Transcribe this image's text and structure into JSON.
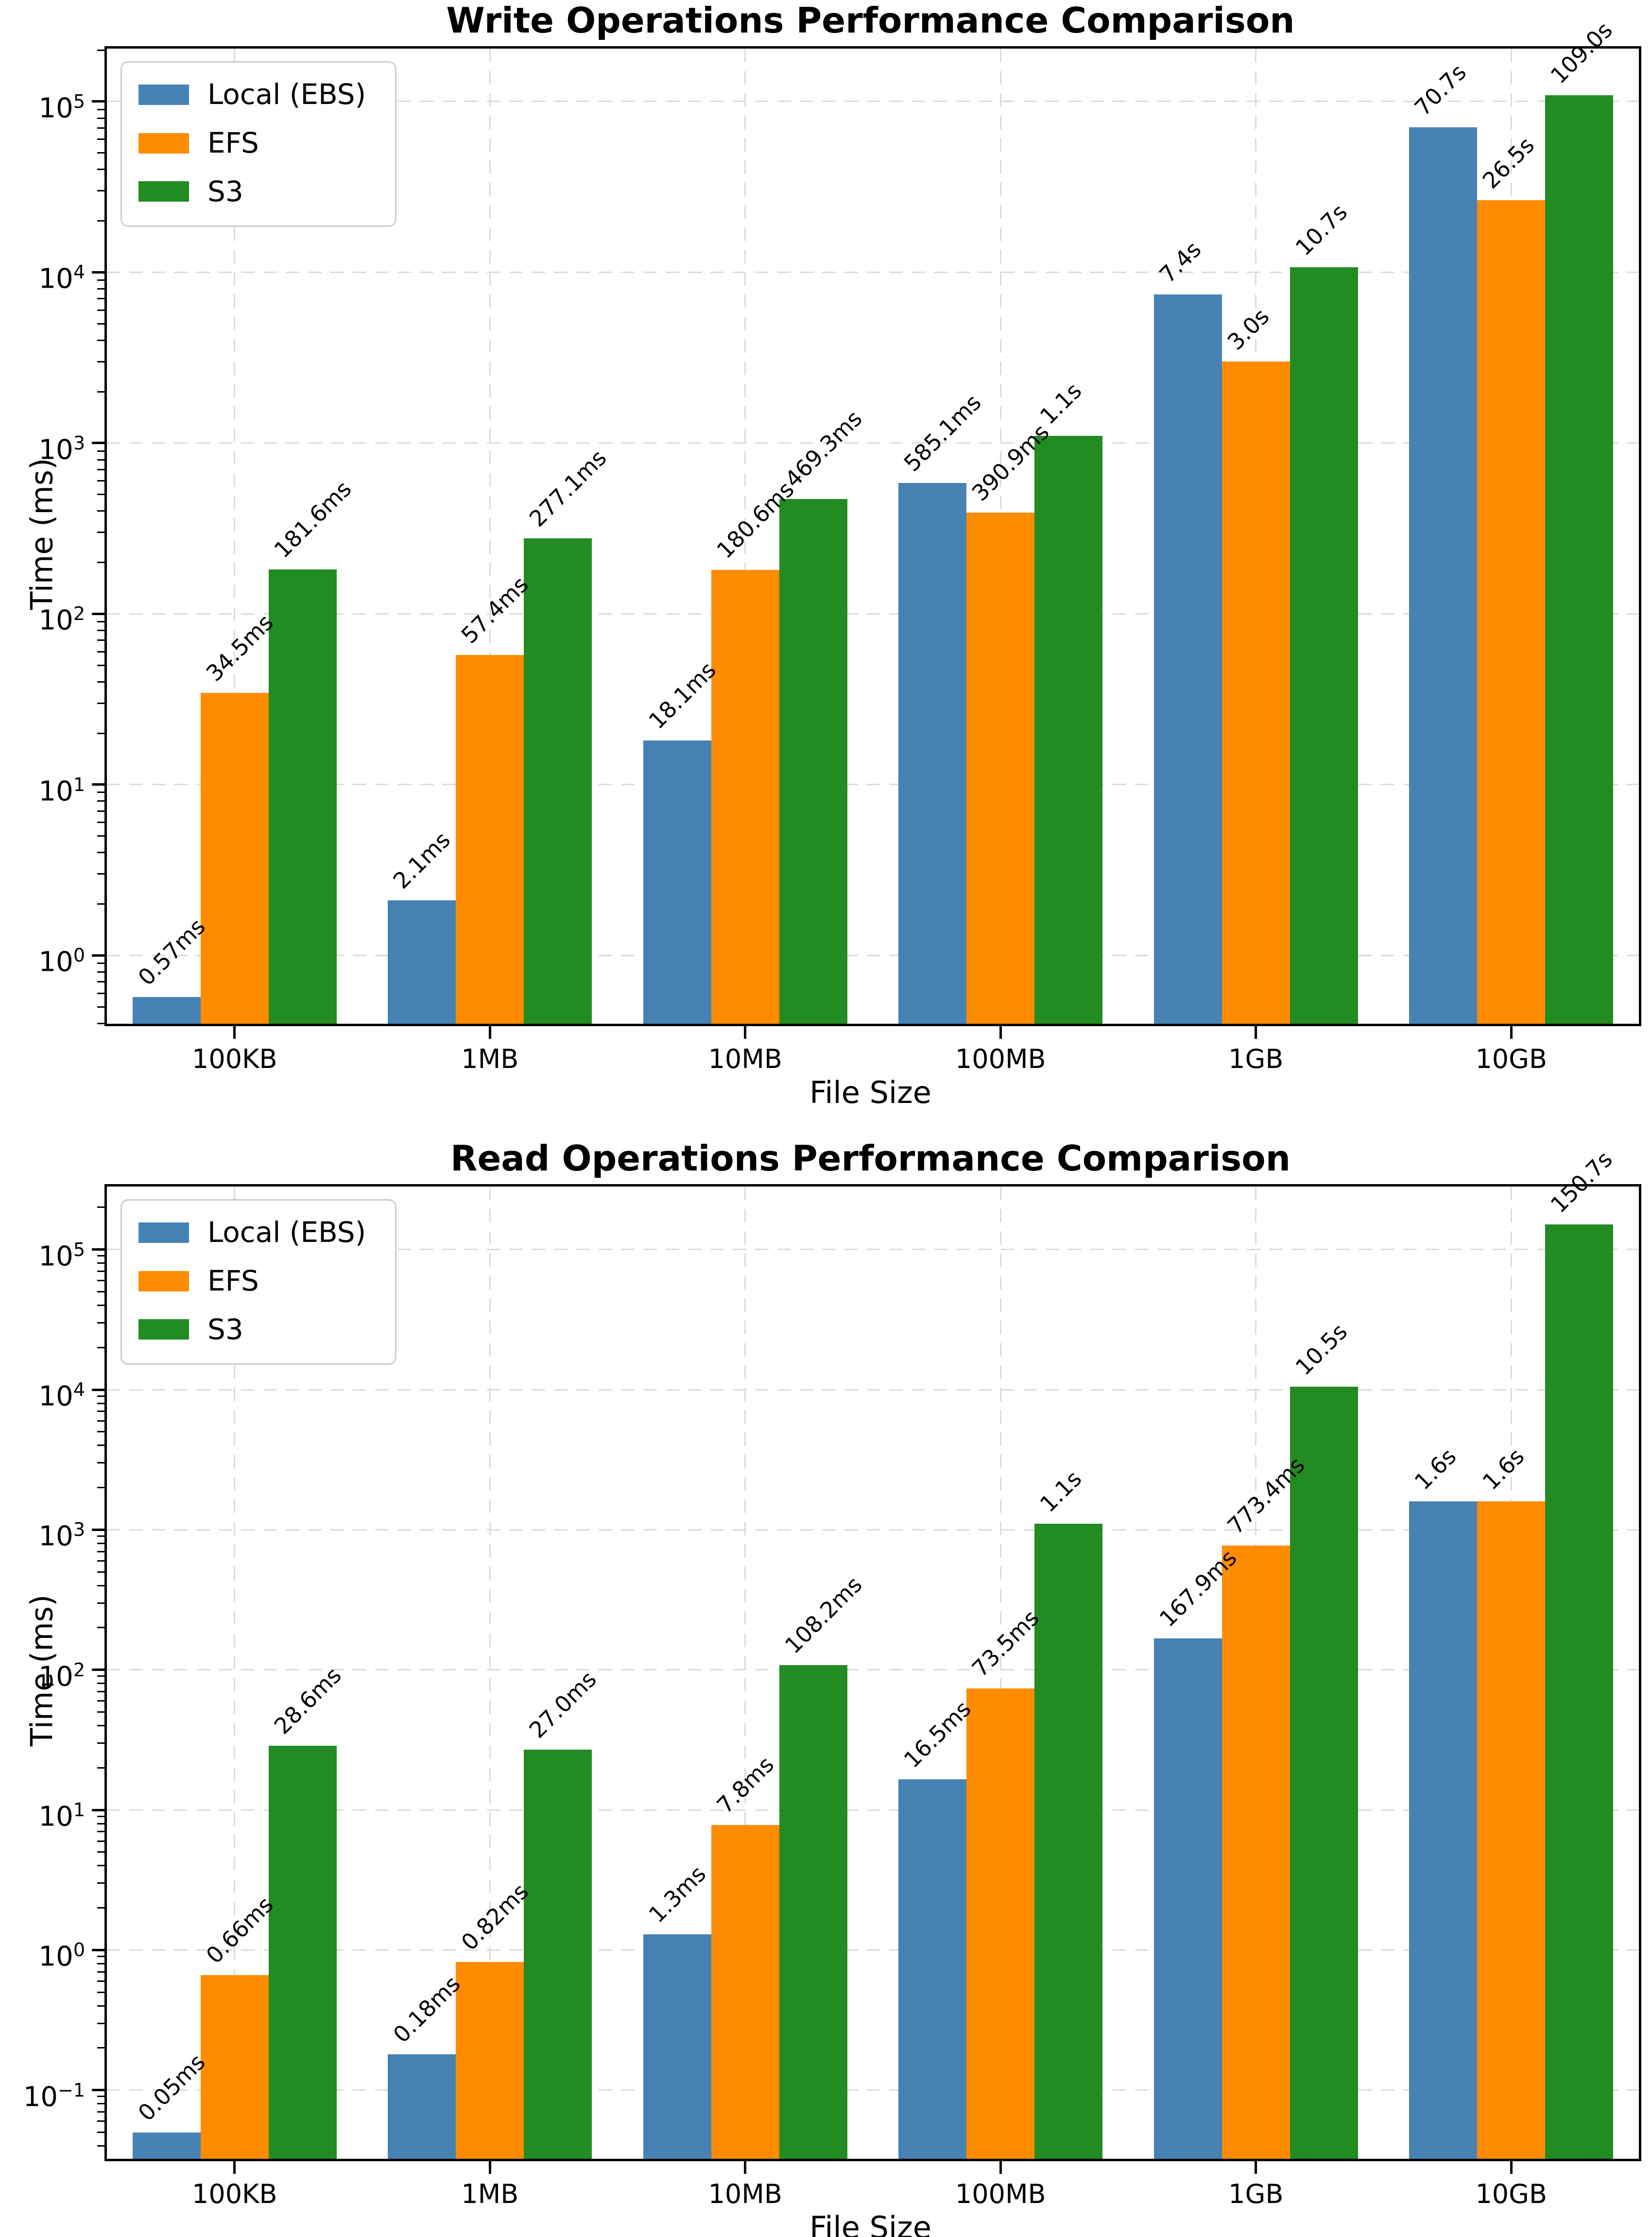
{
  "page": {
    "background": "#FFFFFF"
  },
  "colors": {
    "local_ebs": "#4682B4",
    "efs": "#FF8C00",
    "s3": "#228B22",
    "grid": "#DCDCDC",
    "axis": "#000000",
    "legend_border": "#CCCCCC"
  },
  "chart_data": [
    {
      "type": "bar",
      "scale": "log",
      "grid": true,
      "legend_position": "upper left",
      "title": "Write Operations Performance Comparison",
      "xlabel": "File Size",
      "ylabel": "Time (ms)",
      "categories": [
        "100KB",
        "1MB",
        "10MB",
        "100MB",
        "1GB",
        "10GB"
      ],
      "ytick_exponents": [
        0,
        1,
        2,
        3,
        4,
        5
      ],
      "ylim_exponents": [
        -0.4,
        5.31
      ],
      "series": [
        {
          "name": "Local (EBS)",
          "color": "#4682B4",
          "values_ms": [
            0.57,
            2.1,
            18.1,
            585.1,
            7400,
            70700
          ],
          "labels": [
            "0.57ms",
            "2.1ms",
            "18.1ms",
            "585.1ms",
            "7.4s",
            "70.7s"
          ]
        },
        {
          "name": "EFS",
          "color": "#FF8C00",
          "values_ms": [
            34.5,
            57.4,
            180.6,
            390.9,
            3000,
            26500
          ],
          "labels": [
            "34.5ms",
            "57.4ms",
            "180.6ms",
            "390.9ms",
            "3.0s",
            "26.5s"
          ]
        },
        {
          "name": "S3",
          "color": "#228B22",
          "values_ms": [
            181.6,
            277.1,
            469.3,
            1100,
            10700,
            109000
          ],
          "labels": [
            "181.6ms",
            "277.1ms",
            "469.3ms",
            "1.1s",
            "10.7s",
            "109.0s"
          ]
        }
      ]
    },
    {
      "type": "bar",
      "scale": "log",
      "grid": true,
      "legend_position": "upper left",
      "title": "Read Operations Performance Comparison",
      "xlabel": "File Size",
      "ylabel": "Time (ms)",
      "categories": [
        "100KB",
        "1MB",
        "10MB",
        "100MB",
        "1GB",
        "10GB"
      ],
      "ytick_exponents": [
        -1,
        0,
        1,
        2,
        3,
        4,
        5
      ],
      "ylim_exponents": [
        -1.49,
        5.45
      ],
      "series": [
        {
          "name": "Local (EBS)",
          "color": "#4682B4",
          "values_ms": [
            0.05,
            0.18,
            1.3,
            16.5,
            167.9,
            1600
          ],
          "labels": [
            "0.05ms",
            "0.18ms",
            "1.3ms",
            "16.5ms",
            "167.9ms",
            "1.6s"
          ]
        },
        {
          "name": "EFS",
          "color": "#FF8C00",
          "values_ms": [
            0.66,
            0.82,
            7.8,
            73.5,
            773.4,
            1600
          ],
          "labels": [
            "0.66ms",
            "0.82ms",
            "7.8ms",
            "73.5ms",
            "773.4ms",
            "1.6s"
          ]
        },
        {
          "name": "S3",
          "color": "#228B22",
          "values_ms": [
            28.6,
            27.0,
            108.2,
            1100,
            10500,
            150700
          ],
          "labels": [
            "28.6ms",
            "27.0ms",
            "108.2ms",
            "1.1s",
            "10.5s",
            "150.7s"
          ]
        }
      ]
    }
  ]
}
